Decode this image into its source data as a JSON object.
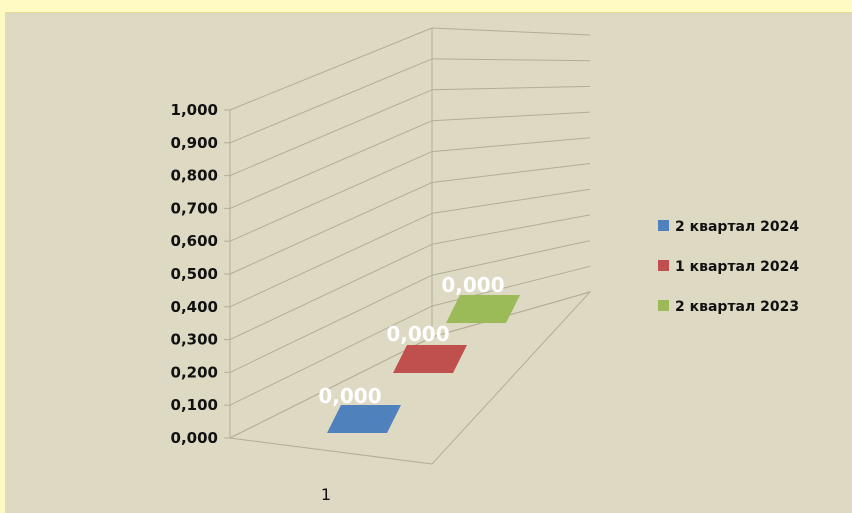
{
  "chart_data": {
    "type": "bar",
    "categories": [
      "1"
    ],
    "series": [
      {
        "name": "2 квартал 2024",
        "values": [
          0.0
        ],
        "color": "#4f81bd",
        "label": "0,000"
      },
      {
        "name": "1 квартал 2024",
        "values": [
          0.0
        ],
        "color": "#c0504d",
        "label": "0,000"
      },
      {
        "name": "2 квартал 2023",
        "values": [
          0.0
        ],
        "color": "#9bbb59",
        "label": "0,000"
      }
    ],
    "yticks": [
      "0,000",
      "0,100",
      "0,200",
      "0,300",
      "0,400",
      "0,500",
      "0,600",
      "0,700",
      "0,800",
      "0,900",
      "1,000"
    ],
    "ylim": [
      0,
      1
    ],
    "grid": true,
    "legend_position": "right",
    "three_d": true
  }
}
